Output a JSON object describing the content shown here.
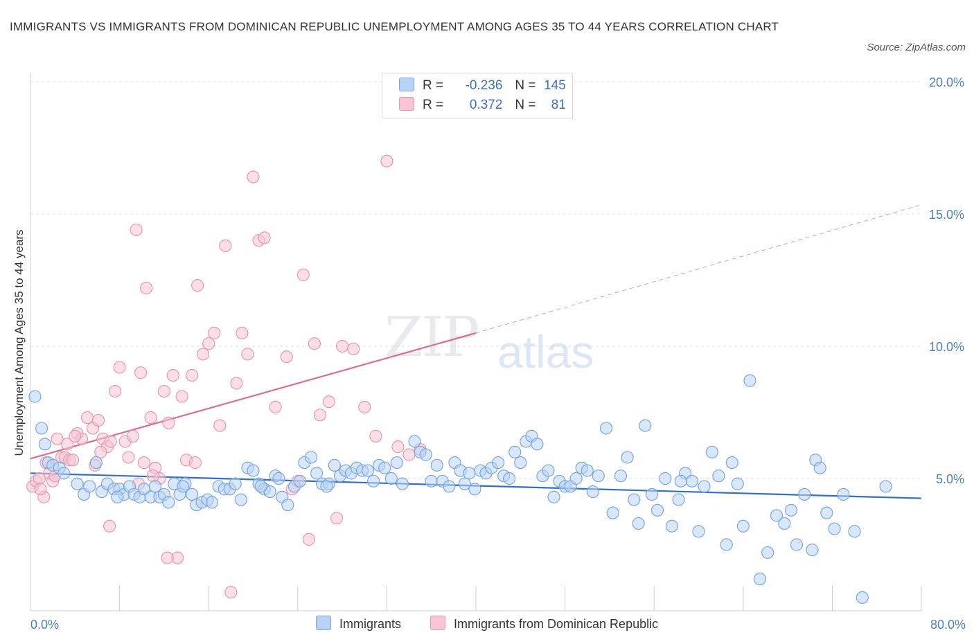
{
  "title": "IMMIGRANTS VS IMMIGRANTS FROM DOMINICAN REPUBLIC UNEMPLOYMENT AMONG AGES 35 TO 44 YEARS CORRELATION CHART",
  "source": "Source: ZipAtlas.com",
  "watermark": {
    "zip": "ZIP",
    "atlas": "atlas"
  },
  "legend": {
    "rows": [
      {
        "r_label": "R =",
        "r_value": "-0.236",
        "n_label": "N =",
        "n_value": "145"
      },
      {
        "r_label": "R =",
        "r_value": "0.372",
        "n_label": "N =",
        "n_value": "81"
      }
    ]
  },
  "colors": {
    "immigrants_fill": "#b8d3f5",
    "immigrants_stroke": "#7aa6dc",
    "immigrants_line": "#2f6fcc",
    "dominican_fill": "#f7c5d3",
    "dominican_stroke": "#e897b0",
    "dominican_line": "#e06a90",
    "grid": "#dcdcdc",
    "axis_text": "#4a7fc1"
  },
  "chart_data": {
    "type": "scatter",
    "title": "IMMIGRANTS VS IMMIGRANTS FROM DOMINICAN REPUBLIC UNEMPLOYMENT AMONG AGES 35 TO 44 YEARS CORRELATION CHART",
    "xlabel": "",
    "ylabel": "Unemployment Among Ages 35 to 44 years",
    "xlim": [
      0,
      80
    ],
    "ylim": [
      0,
      20
    ],
    "x_tick_labels": [
      "0.0%",
      "80.0%"
    ],
    "y_ticks": [
      5,
      10,
      15,
      20
    ],
    "y_tick_labels": [
      "5.0%",
      "10.0%",
      "15.0%",
      "20.0%"
    ],
    "grid": "horizontal dashed",
    "legend_position": "top-center",
    "series": [
      {
        "name": "Immigrants",
        "R": -0.236,
        "N": 145,
        "trend": {
          "x": [
            0,
            80
          ],
          "y": [
            5.2,
            4.25
          ],
          "style": "solid"
        },
        "points": [
          [
            0.4,
            8.1
          ],
          [
            1.0,
            6.9
          ],
          [
            1.3,
            6.3
          ],
          [
            1.6,
            5.6
          ],
          [
            2.0,
            5.5
          ],
          [
            2.6,
            5.4
          ],
          [
            3.0,
            5.2
          ],
          [
            4.2,
            4.8
          ],
          [
            4.8,
            4.4
          ],
          [
            5.3,
            4.7
          ],
          [
            5.9,
            5.6
          ],
          [
            6.4,
            4.5
          ],
          [
            6.9,
            4.8
          ],
          [
            7.5,
            4.6
          ],
          [
            8.0,
            4.6
          ],
          [
            8.4,
            4.4
          ],
          [
            8.9,
            4.7
          ],
          [
            9.3,
            4.4
          ],
          [
            9.8,
            4.3
          ],
          [
            10.2,
            4.6
          ],
          [
            10.8,
            4.3
          ],
          [
            11.2,
            4.7
          ],
          [
            11.6,
            4.3
          ],
          [
            12.0,
            4.4
          ],
          [
            12.4,
            4.1
          ],
          [
            12.9,
            4.8
          ],
          [
            13.4,
            4.4
          ],
          [
            13.9,
            4.8
          ],
          [
            14.5,
            4.4
          ],
          [
            14.9,
            4.0
          ],
          [
            15.4,
            4.1
          ],
          [
            15.9,
            4.2
          ],
          [
            16.3,
            4.1
          ],
          [
            16.9,
            4.7
          ],
          [
            17.4,
            4.6
          ],
          [
            17.9,
            4.6
          ],
          [
            18.4,
            4.8
          ],
          [
            18.9,
            4.2
          ],
          [
            19.5,
            5.4
          ],
          [
            20.0,
            5.3
          ],
          [
            20.5,
            4.8
          ],
          [
            21.0,
            4.6
          ],
          [
            21.5,
            4.5
          ],
          [
            22.0,
            5.1
          ],
          [
            22.6,
            4.3
          ],
          [
            23.1,
            4.0
          ],
          [
            23.7,
            4.7
          ],
          [
            24.2,
            4.9
          ],
          [
            24.6,
            5.6
          ],
          [
            25.2,
            5.8
          ],
          [
            25.7,
            5.2
          ],
          [
            26.2,
            4.8
          ],
          [
            26.8,
            4.8
          ],
          [
            27.3,
            5.5
          ],
          [
            27.8,
            5.1
          ],
          [
            28.3,
            5.3
          ],
          [
            28.8,
            5.2
          ],
          [
            29.3,
            5.4
          ],
          [
            29.8,
            5.3
          ],
          [
            30.3,
            5.3
          ],
          [
            30.8,
            4.9
          ],
          [
            31.3,
            5.5
          ],
          [
            31.8,
            5.4
          ],
          [
            32.4,
            5.0
          ],
          [
            32.9,
            5.6
          ],
          [
            33.4,
            4.8
          ],
          [
            34.5,
            6.4
          ],
          [
            35.0,
            6.0
          ],
          [
            35.5,
            5.9
          ],
          [
            36.0,
            4.9
          ],
          [
            36.5,
            5.5
          ],
          [
            37.0,
            4.9
          ],
          [
            37.6,
            4.7
          ],
          [
            38.1,
            5.6
          ],
          [
            38.6,
            5.3
          ],
          [
            39.0,
            4.8
          ],
          [
            39.4,
            5.2
          ],
          [
            39.9,
            4.6
          ],
          [
            40.4,
            5.3
          ],
          [
            40.9,
            5.2
          ],
          [
            41.4,
            5.4
          ],
          [
            42.0,
            5.6
          ],
          [
            42.5,
            5.1
          ],
          [
            43.0,
            5.0
          ],
          [
            43.5,
            6.0
          ],
          [
            44.0,
            5.6
          ],
          [
            44.5,
            6.4
          ],
          [
            45.0,
            6.6
          ],
          [
            45.5,
            6.3
          ],
          [
            46.0,
            5.1
          ],
          [
            46.5,
            5.3
          ],
          [
            47.0,
            4.3
          ],
          [
            47.5,
            4.9
          ],
          [
            48.0,
            4.7
          ],
          [
            48.5,
            4.7
          ],
          [
            49.0,
            5.0
          ],
          [
            49.5,
            5.4
          ],
          [
            50.0,
            5.3
          ],
          [
            50.5,
            4.5
          ],
          [
            51.0,
            5.1
          ],
          [
            51.7,
            6.9
          ],
          [
            52.3,
            3.7
          ],
          [
            53.0,
            5.1
          ],
          [
            53.6,
            5.8
          ],
          [
            54.2,
            4.2
          ],
          [
            54.6,
            3.3
          ],
          [
            55.2,
            7.0
          ],
          [
            55.8,
            4.4
          ],
          [
            56.3,
            3.8
          ],
          [
            57.0,
            5.0
          ],
          [
            57.6,
            3.2
          ],
          [
            58.2,
            4.2
          ],
          [
            58.8,
            5.2
          ],
          [
            59.4,
            4.9
          ],
          [
            60.0,
            3.0
          ],
          [
            60.5,
            4.7
          ],
          [
            61.2,
            6.0
          ],
          [
            61.8,
            5.1
          ],
          [
            62.5,
            2.5
          ],
          [
            63.0,
            5.6
          ],
          [
            63.5,
            4.8
          ],
          [
            64.0,
            3.2
          ],
          [
            64.6,
            8.7
          ],
          [
            65.5,
            1.2
          ],
          [
            66.2,
            2.2
          ],
          [
            67.0,
            3.6
          ],
          [
            67.7,
            3.3
          ],
          [
            68.3,
            3.8
          ],
          [
            68.8,
            2.5
          ],
          [
            69.5,
            4.4
          ],
          [
            70.2,
            2.3
          ],
          [
            70.5,
            5.7
          ],
          [
            70.9,
            5.4
          ],
          [
            71.5,
            3.7
          ],
          [
            72.2,
            3.1
          ],
          [
            73.0,
            4.4
          ],
          [
            74.0,
            3.0
          ],
          [
            74.7,
            0.5
          ],
          [
            76.8,
            4.7
          ],
          [
            58.4,
            4.9
          ],
          [
            26.6,
            4.7
          ],
          [
            22.3,
            5.0
          ],
          [
            20.7,
            4.7
          ],
          [
            13.7,
            4.7
          ],
          [
            7.8,
            4.3
          ]
        ]
      },
      {
        "name": "Immigrants from Dominican Republic",
        "R": 0.372,
        "N": 81,
        "trend": {
          "x": [
            0,
            40
          ],
          "y": [
            5.75,
            10.5
          ],
          "dashed_extension": {
            "x": [
              40,
              80
            ],
            "y": [
              10.5,
              15.35
            ]
          }
        },
        "points": [
          [
            0.2,
            4.7
          ],
          [
            0.5,
            4.9
          ],
          [
            0.8,
            5.0
          ],
          [
            1.2,
            4.3
          ],
          [
            1.4,
            5.6
          ],
          [
            1.7,
            5.2
          ],
          [
            2.0,
            4.9
          ],
          [
            2.4,
            6.5
          ],
          [
            2.8,
            5.8
          ],
          [
            3.1,
            5.8
          ],
          [
            3.5,
            5.7
          ],
          [
            3.8,
            5.7
          ],
          [
            4.2,
            6.7
          ],
          [
            4.6,
            6.5
          ],
          [
            5.1,
            7.3
          ],
          [
            5.6,
            6.9
          ],
          [
            6.1,
            7.2
          ],
          [
            6.5,
            6.5
          ],
          [
            6.9,
            6.2
          ],
          [
            7.2,
            6.4
          ],
          [
            7.6,
            8.3
          ],
          [
            8.0,
            9.2
          ],
          [
            8.5,
            6.4
          ],
          [
            8.8,
            5.8
          ],
          [
            9.2,
            6.6
          ],
          [
            9.5,
            14.4
          ],
          [
            9.9,
            9.0
          ],
          [
            10.2,
            5.6
          ],
          [
            10.4,
            12.2
          ],
          [
            10.8,
            7.3
          ],
          [
            11.2,
            5.4
          ],
          [
            11.6,
            5.0
          ],
          [
            12.0,
            8.3
          ],
          [
            12.4,
            7.1
          ],
          [
            12.8,
            8.9
          ],
          [
            13.2,
            2.0
          ],
          [
            13.6,
            8.1
          ],
          [
            14.0,
            5.7
          ],
          [
            14.5,
            8.9
          ],
          [
            15.0,
            12.3
          ],
          [
            15.5,
            9.7
          ],
          [
            16.0,
            10.1
          ],
          [
            16.5,
            10.5
          ],
          [
            17.0,
            7.0
          ],
          [
            17.5,
            13.8
          ],
          [
            18.0,
            0.7
          ],
          [
            18.5,
            8.6
          ],
          [
            19.0,
            10.5
          ],
          [
            19.5,
            9.7
          ],
          [
            20.0,
            16.4
          ],
          [
            20.5,
            14.0
          ],
          [
            21.0,
            14.1
          ],
          [
            22.0,
            7.7
          ],
          [
            23.0,
            9.6
          ],
          [
            23.5,
            4.6
          ],
          [
            24.0,
            4.9
          ],
          [
            24.5,
            12.7
          ],
          [
            25.0,
            2.7
          ],
          [
            25.5,
            10.1
          ],
          [
            26.0,
            7.4
          ],
          [
            26.8,
            7.9
          ],
          [
            27.5,
            3.5
          ],
          [
            28.0,
            10.0
          ],
          [
            29.0,
            9.9
          ],
          [
            30.0,
            7.7
          ],
          [
            31.0,
            6.6
          ],
          [
            32.0,
            17.0
          ],
          [
            33.0,
            6.2
          ],
          [
            34.0,
            5.9
          ],
          [
            35.0,
            6.1
          ],
          [
            7.1,
            3.2
          ],
          [
            12.3,
            2.0
          ],
          [
            3.3,
            6.3
          ],
          [
            0.9,
            4.6
          ],
          [
            5.8,
            5.5
          ],
          [
            9.7,
            4.8
          ],
          [
            14.8,
            5.6
          ],
          [
            2.2,
            5.1
          ],
          [
            6.3,
            6.0
          ],
          [
            11.0,
            5.1
          ],
          [
            4.0,
            6.6
          ]
        ]
      }
    ]
  }
}
